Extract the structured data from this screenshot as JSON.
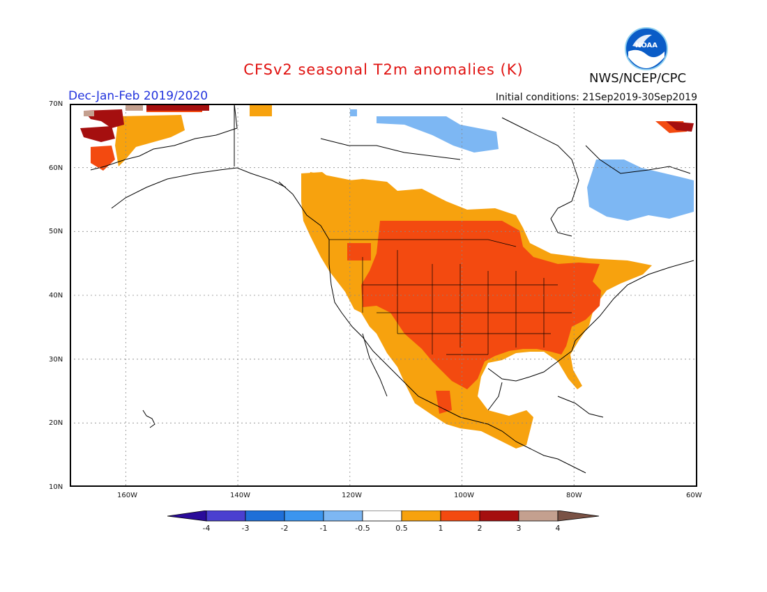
{
  "header": {
    "title": "CFSv2 seasonal T2m anomalies (K)",
    "period": "Dec-Jan-Feb 2019/2020",
    "initial_conditions": "Initial conditions: 21Sep2019-30Sep2019",
    "agency": "NWS/NCEP/CPC",
    "logo_text": "NOAA"
  },
  "map": {
    "lat_labels": [
      "70N",
      "60N",
      "50N",
      "40N",
      "30N",
      "20N",
      "10N"
    ],
    "lon_labels": [
      "160W",
      "140W",
      "120W",
      "100W",
      "80W",
      "60W"
    ],
    "lat_range": [
      10,
      70
    ],
    "lon_range": [
      -172,
      -60
    ],
    "colors": {
      "neg_lt_4": "#2a0b9a",
      "neg_4_3": "#4a3fd0",
      "neg_3_2": "#1f6fd8",
      "neg_2_1": "#3b95ef",
      "neg_1_05": "#7db7f3",
      "neutral": "#ffffff",
      "pos_05_1": "#f7a20e",
      "pos_1_2": "#f34a10",
      "pos_2_3": "#a50f0f",
      "pos_3_4": "#c4a08f",
      "pos_gt_4": "#7a5245"
    }
  },
  "colorbar": {
    "labels": [
      "-4",
      "-3",
      "-2",
      "-1",
      "-0.5",
      "0.5",
      "1",
      "2",
      "3",
      "4"
    ]
  }
}
